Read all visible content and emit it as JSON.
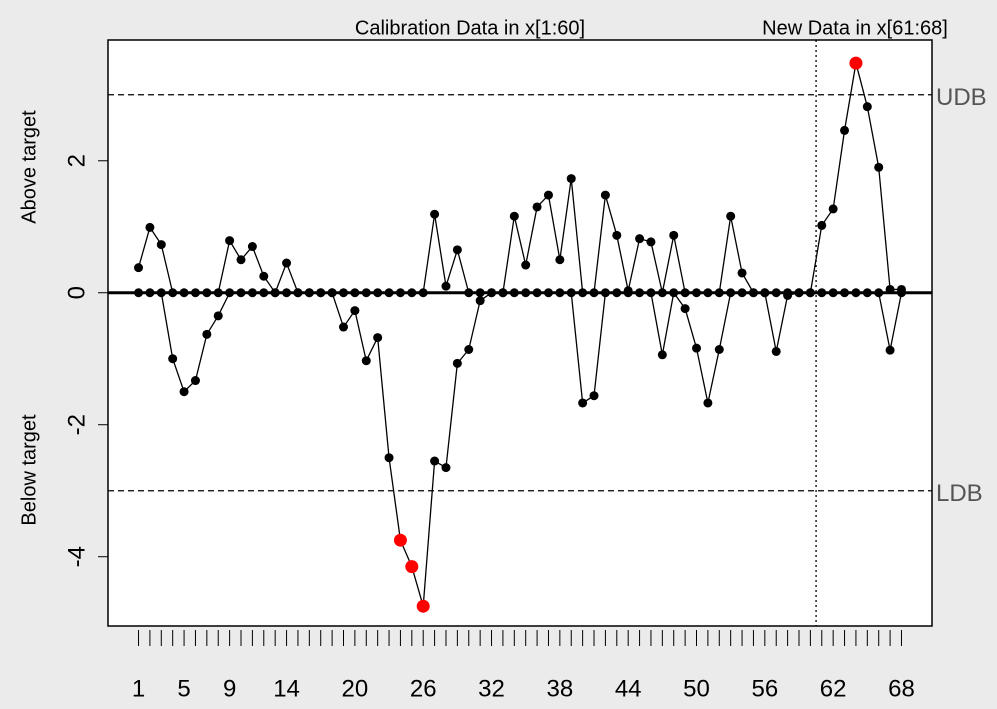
{
  "chart_data": {
    "type": "cusum",
    "calibration_label": "Calibration Data in x[1:60]",
    "new_data_label": "New Data in x[61:68]",
    "above_label": "Above target",
    "below_label": "Below target",
    "x": [
      1,
      2,
      3,
      4,
      5,
      6,
      7,
      8,
      9,
      10,
      11,
      12,
      13,
      14,
      15,
      16,
      17,
      18,
      19,
      20,
      21,
      22,
      23,
      24,
      25,
      26,
      27,
      28,
      29,
      30,
      31,
      32,
      33,
      34,
      35,
      36,
      37,
      38,
      39,
      40,
      41,
      42,
      43,
      44,
      45,
      46,
      47,
      48,
      49,
      50,
      51,
      52,
      53,
      54,
      55,
      56,
      57,
      58,
      59,
      60,
      61,
      62,
      63,
      64,
      65,
      66,
      67,
      68
    ],
    "series": [
      {
        "color": "#000000",
        "values": [
          0.38,
          0.99,
          0.73,
          0,
          0,
          0,
          0,
          0,
          0.79,
          0.5,
          0.7,
          0.25,
          0,
          0.45,
          0,
          0,
          0,
          0,
          0,
          0,
          0,
          0,
          0,
          0,
          0,
          0,
          1.19,
          0.1,
          0.65,
          0,
          0,
          0,
          0,
          1.16,
          0.42,
          1.3,
          1.48,
          0.5,
          1.73,
          0,
          0,
          1.48,
          0.87,
          0.03,
          0.82,
          0.77,
          0,
          0.87,
          0,
          0,
          0,
          0,
          1.16,
          0.3,
          0,
          0,
          0,
          0,
          0,
          0,
          1.02,
          1.27,
          2.46,
          3.48,
          2.82,
          1.9,
          0.05,
          0.05
        ]
      },
      {
        "color": "#000000",
        "values": [
          0,
          0,
          0,
          -1.0,
          -1.5,
          -1.33,
          -0.63,
          -0.35,
          0,
          0,
          0,
          0,
          0,
          0,
          0,
          0,
          0,
          0,
          -0.52,
          -0.27,
          -1.03,
          -0.68,
          -2.5,
          -3.75,
          -4.15,
          -4.75,
          -2.55,
          -2.65,
          -1.07,
          -0.86,
          -0.12,
          0,
          0,
          0,
          0,
          0,
          0,
          0,
          0,
          -1.67,
          -1.56,
          0,
          0,
          0,
          0,
          0,
          -0.94,
          0,
          -0.24,
          -0.84,
          -1.67,
          -0.86,
          0,
          0,
          0,
          0,
          -0.89,
          -0.04,
          0,
          0,
          0,
          0,
          0,
          0,
          0,
          0,
          -0.87,
          0
        ]
      }
    ],
    "violation_color": "#ff0000",
    "center": 0,
    "limits": [
      {
        "value": 3,
        "label": "UDB"
      },
      {
        "value": -3,
        "label": "LDB"
      }
    ],
    "separator_x": 60.5,
    "xlim": [
      -1.68,
      70.68
    ],
    "ylim": [
      -5.05,
      3.83
    ],
    "xticks": [
      1,
      5,
      9,
      14,
      20,
      26,
      32,
      38,
      44,
      50,
      56,
      62,
      68
    ],
    "xminor_ticks": [
      1,
      2,
      3,
      4,
      5,
      6,
      7,
      8,
      9,
      10,
      11,
      12,
      13,
      14,
      15,
      16,
      17,
      18,
      19,
      20,
      21,
      22,
      23,
      24,
      25,
      26,
      27,
      28,
      29,
      30,
      31,
      32,
      33,
      34,
      35,
      36,
      37,
      38,
      39,
      40,
      41,
      42,
      43,
      44,
      45,
      46,
      47,
      48,
      49,
      50,
      51,
      52,
      53,
      54,
      55,
      56,
      57,
      58,
      59,
      60,
      61,
      62,
      63,
      64,
      65,
      66,
      67,
      68
    ],
    "yticks": [
      -4,
      -2,
      0,
      2
    ]
  }
}
